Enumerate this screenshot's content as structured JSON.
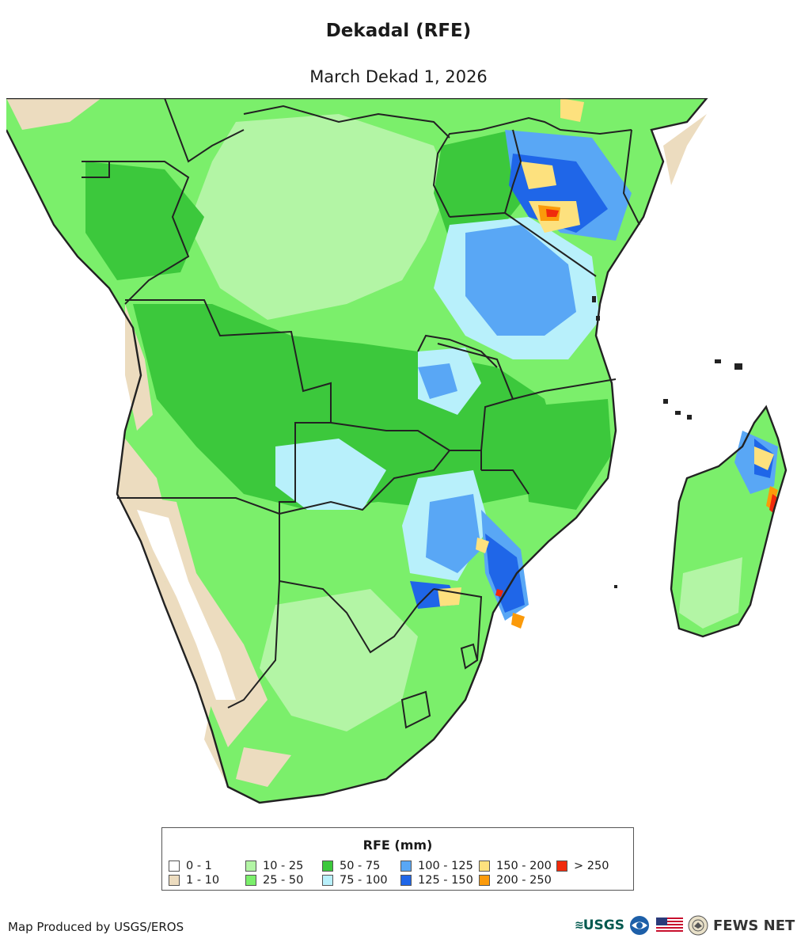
{
  "title": "Dekadal (RFE)",
  "subtitle": "March Dekad 1, 2026",
  "map": {
    "region": "Southern Africa",
    "variable": "RFE",
    "unit": "mm"
  },
  "legend": {
    "title": "RFE (mm)",
    "items": [
      {
        "label": "0 - 1",
        "color": "#ffffff"
      },
      {
        "label": "1 - 10",
        "color": "#ecdcbf"
      },
      {
        "label": "10 - 25",
        "color": "#b3f5a5"
      },
      {
        "label": "25 - 50",
        "color": "#7bef6b"
      },
      {
        "label": "50 - 75",
        "color": "#3cc83c"
      },
      {
        "label": "75 - 100",
        "color": "#b8f0fb"
      },
      {
        "label": "100 - 125",
        "color": "#59a7f5"
      },
      {
        "label": "125 - 150",
        "color": "#1f66e8"
      },
      {
        "label": "150 - 200",
        "color": "#fde17e"
      },
      {
        "label": "200 - 250",
        "color": "#fb9a0a"
      },
      {
        "label": "> 250",
        "color": "#f02a0c"
      }
    ]
  },
  "footer": {
    "credit": "Map Produced by USGS/EROS",
    "usgs": "USGS",
    "fews": "FEWS NET"
  }
}
